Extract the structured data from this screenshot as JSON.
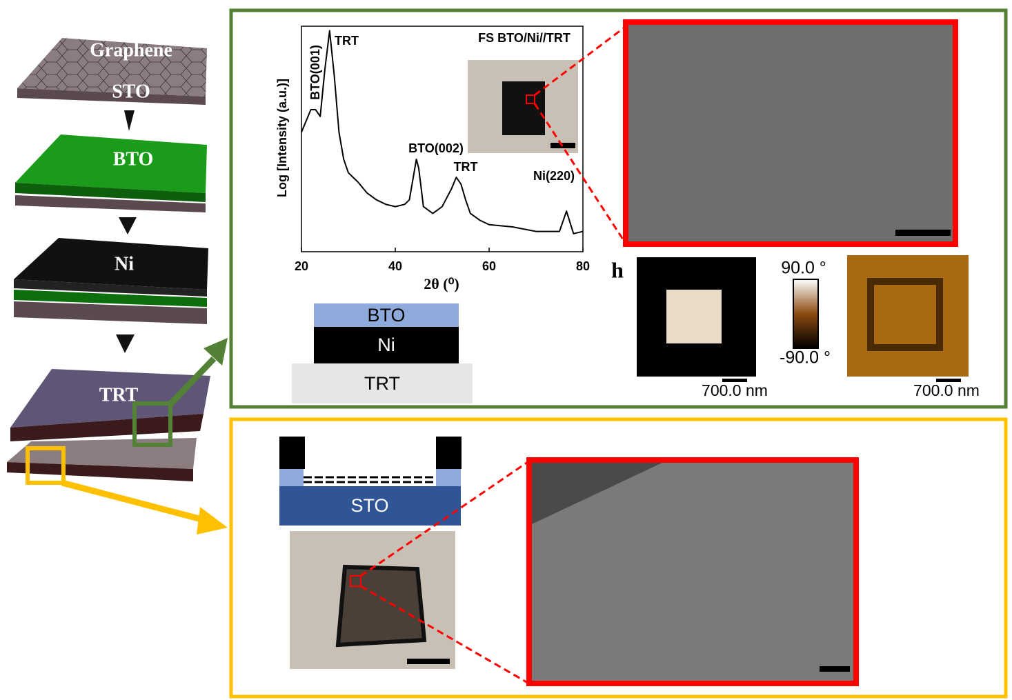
{
  "stack": {
    "layers": [
      "Graphene",
      "STO",
      "BTO",
      "Ni",
      "TRT"
    ]
  },
  "chart_data": {
    "type": "line",
    "x_label": "2θ (⁰)",
    "y_label": "Log [Intensity (a.u.)]",
    "inset_title": "FS BTO/Ni//TRT",
    "annotations": [
      "TRT",
      "BTO(001)",
      "BTO(002)",
      "TRT",
      "Ni(220)"
    ],
    "x": [
      20,
      22,
      23,
      24,
      25,
      26,
      27,
      28,
      29,
      30,
      32,
      34,
      36,
      38,
      40,
      42,
      43,
      44,
      44.5,
      45,
      46,
      48,
      50,
      52,
      53,
      54,
      55,
      56,
      58,
      60,
      65,
      70,
      75,
      76.5,
      78,
      80
    ],
    "series": [
      {
        "name": "FS BTO/Ni//TRT",
        "color": "#000000",
        "values": [
          53,
          63,
          63,
          60,
          81,
          98,
          78,
          53,
          41,
          35,
          31,
          26,
          23,
          21,
          20,
          21,
          23,
          35,
          41,
          37,
          20,
          17,
          20,
          28,
          33,
          30,
          23,
          17,
          14,
          12,
          11,
          9,
          9,
          18,
          8,
          9
        ]
      }
    ],
    "xlim": [
      20,
      80
    ],
    "xticks": [
      20,
      40,
      60,
      80
    ],
    "ylim": [
      0,
      100
    ]
  },
  "cross_section": {
    "layers": [
      "BTO",
      "Ni",
      "TRT"
    ]
  },
  "panel_label": "h",
  "colorbar": {
    "max": "90.0 °",
    "min": "-90.0 °"
  },
  "scale_labels": [
    "700.0 nm",
    "700.0 nm"
  ],
  "device": {
    "substrate": "STO"
  }
}
